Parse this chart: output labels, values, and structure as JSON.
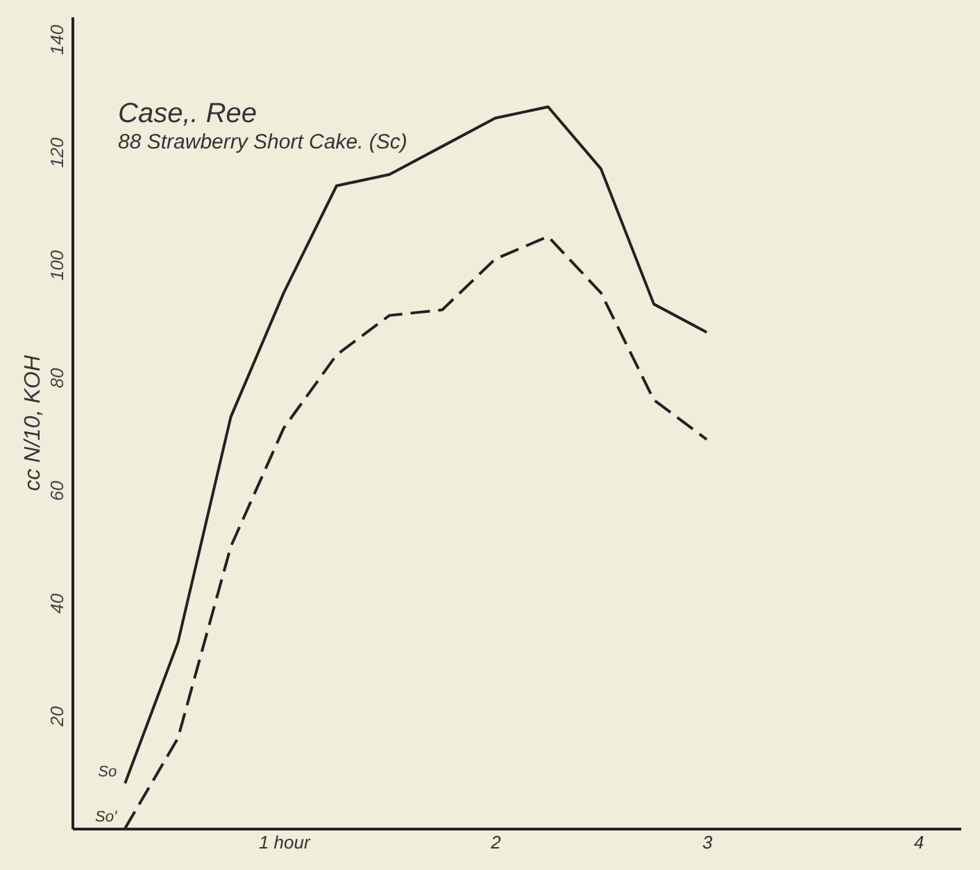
{
  "chart_data": {
    "type": "line",
    "title": "Case,. Ree",
    "subtitle": "88 Strawberry Short Cake. (Sc)",
    "ylabel": "cc N/10, KOH",
    "x": [
      0.25,
      0.5,
      0.75,
      1,
      1.25,
      1.5,
      1.75,
      2,
      2.25,
      2.5,
      2.75,
      3
    ],
    "series": [
      {
        "name": "So",
        "color": "#222222",
        "line_style": "solid",
        "values": [
          8,
          33,
          73,
          95,
          114,
          116,
          121,
          126,
          128,
          117,
          93,
          88
        ]
      },
      {
        "name": "So'",
        "color": "#222222",
        "line_style": "dashed",
        "values": [
          0,
          16,
          50,
          71,
          84,
          91,
          92,
          101,
          105,
          95,
          76,
          69
        ]
      }
    ],
    "xlim": [
      0,
      4.2
    ],
    "xticks": [
      {
        "value": 1,
        "label": "1 hour"
      },
      2,
      3,
      4
    ],
    "ylim": [
      0,
      144
    ],
    "yticks": [
      20,
      40,
      60,
      80,
      100,
      120,
      140
    ],
    "grid": false,
    "marker": "none"
  }
}
